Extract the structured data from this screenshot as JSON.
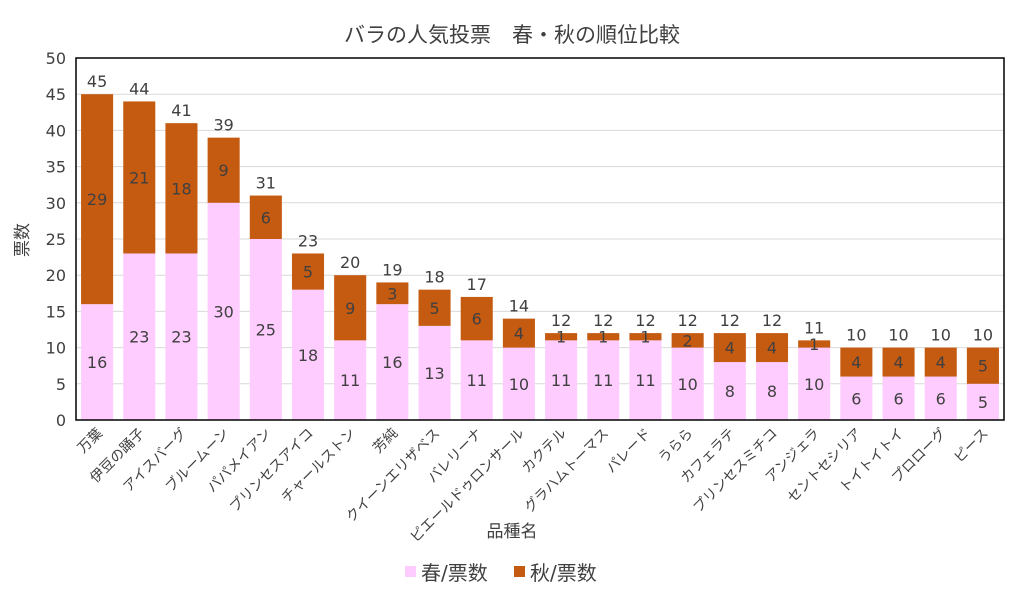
{
  "chart_data": {
    "type": "bar",
    "stacked": true,
    "title": "バラの人気投票　春・秋の順位比較",
    "xlabel": "品種名",
    "ylabel": "票数",
    "ylim": [
      0,
      50
    ],
    "yticks": [
      0,
      5,
      10,
      15,
      20,
      25,
      30,
      35,
      40,
      45,
      50
    ],
    "grid": true,
    "legend_position": "bottom",
    "categories": [
      "万葉",
      "伊豆の踊子",
      "アイスバーグ",
      "ブルームーン",
      "パパメイアン",
      "プリンセスアイコ",
      "チャールストン",
      "芳純",
      "クイーンエリザベス",
      "バレリーナ",
      "ピエールドゥロンサール",
      "カクテル",
      "グラハムトーマス",
      "パレード",
      "うらら",
      "カフェラテ",
      "プリンセスミチコ",
      "アンジェラ",
      "セントセシリア",
      "トイトイトイ",
      "プロローグ",
      "ピース"
    ],
    "series": [
      {
        "name": "春/票数",
        "color": "#FFCCFF",
        "values": [
          16,
          23,
          23,
          30,
          25,
          18,
          11,
          16,
          13,
          11,
          10,
          11,
          11,
          11,
          10,
          8,
          8,
          10,
          6,
          6,
          6,
          5
        ]
      },
      {
        "name": "秋/票数",
        "color": "#C55A11",
        "values": [
          29,
          21,
          18,
          9,
          6,
          5,
          9,
          3,
          5,
          6,
          4,
          1,
          1,
          1,
          2,
          4,
          4,
          1,
          4,
          4,
          4,
          5
        ]
      }
    ],
    "totals": [
      45,
      44,
      41,
      39,
      31,
      23,
      20,
      19,
      18,
      17,
      14,
      12,
      12,
      12,
      12,
      12,
      12,
      11,
      10,
      10,
      10,
      10
    ]
  }
}
